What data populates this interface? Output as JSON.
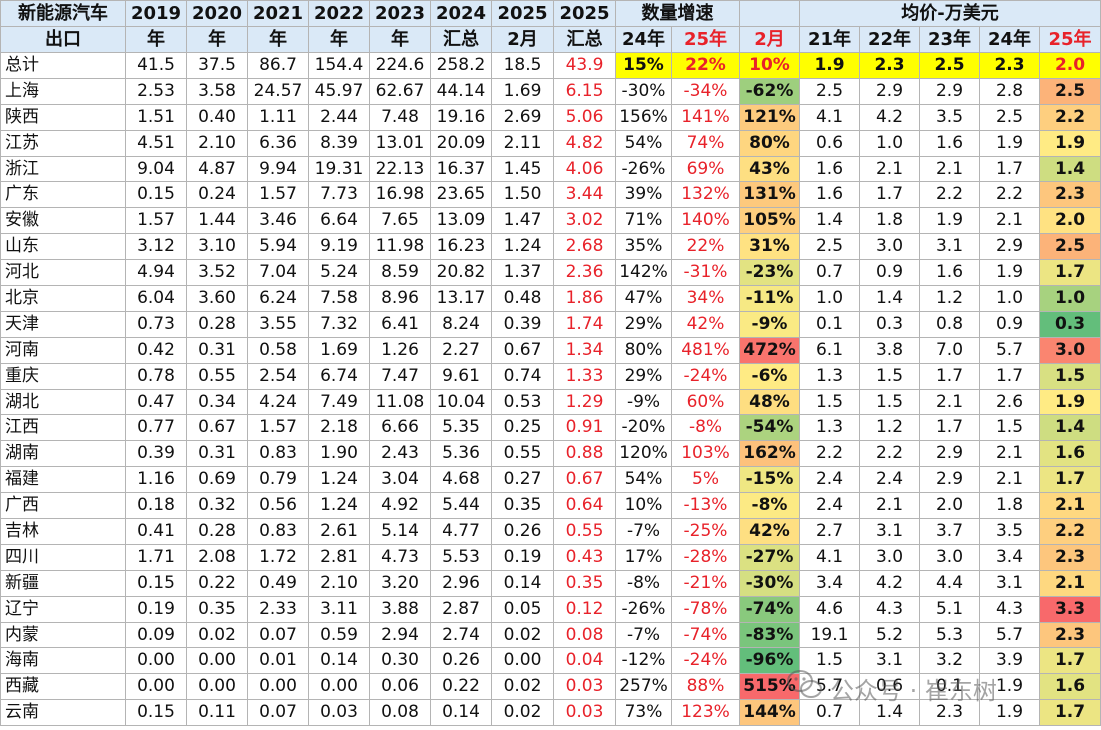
{
  "header": {
    "row1": [
      "新能源汽车",
      "2019",
      "2020",
      "2021",
      "2022",
      "2023",
      "2024",
      "2025",
      "2025",
      "数量增速",
      "",
      "均价-万美元"
    ],
    "row2": [
      "出口",
      "年",
      "年",
      "年",
      "年",
      "年",
      "汇总",
      "2月",
      "汇总",
      "24年",
      "25年",
      "2月",
      "21年",
      "22年",
      "23年",
      "24年",
      "25年"
    ]
  },
  "rows": [
    {
      "cells": [
        "总计",
        "41.5",
        "37.5",
        "86.7",
        "154.4",
        "224.6",
        "258.2",
        "18.5",
        "43.9",
        "15%",
        "22%",
        "10%",
        "1.9",
        "2.3",
        "2.5",
        "2.3",
        "2.0"
      ]
    },
    {
      "cells": [
        "上海",
        "2.53",
        "3.58",
        "24.57",
        "45.97",
        "62.67",
        "44.14",
        "1.69",
        "6.15",
        "-30%",
        "-34%",
        "-62%",
        "2.5",
        "2.9",
        "2.9",
        "2.8",
        "2.5"
      ]
    },
    {
      "cells": [
        "陕西",
        "1.51",
        "0.40",
        "1.11",
        "2.44",
        "7.48",
        "19.16",
        "2.69",
        "5.06",
        "156%",
        "141%",
        "121%",
        "4.1",
        "4.2",
        "3.5",
        "2.5",
        "2.2"
      ]
    },
    {
      "cells": [
        "江苏",
        "4.51",
        "2.10",
        "6.36",
        "8.39",
        "13.01",
        "20.09",
        "2.11",
        "4.82",
        "54%",
        "74%",
        "80%",
        "0.6",
        "1.0",
        "1.6",
        "1.9",
        "1.9"
      ]
    },
    {
      "cells": [
        "浙江",
        "9.04",
        "4.87",
        "9.94",
        "19.31",
        "22.13",
        "16.37",
        "1.45",
        "4.06",
        "-26%",
        "69%",
        "43%",
        "1.6",
        "2.1",
        "2.1",
        "1.7",
        "1.4"
      ]
    },
    {
      "cells": [
        "广东",
        "0.15",
        "0.24",
        "1.57",
        "7.73",
        "16.98",
        "23.65",
        "1.50",
        "3.44",
        "39%",
        "132%",
        "131%",
        "1.6",
        "1.7",
        "2.2",
        "2.2",
        "2.3"
      ]
    },
    {
      "cells": [
        "安徽",
        "1.57",
        "1.44",
        "3.46",
        "6.64",
        "7.65",
        "13.09",
        "1.47",
        "3.02",
        "71%",
        "140%",
        "105%",
        "1.4",
        "1.8",
        "1.9",
        "2.1",
        "2.0"
      ]
    },
    {
      "cells": [
        "山东",
        "3.12",
        "3.10",
        "5.94",
        "9.19",
        "11.98",
        "16.23",
        "1.24",
        "2.68",
        "35%",
        "22%",
        "31%",
        "2.5",
        "3.0",
        "3.1",
        "2.9",
        "2.5"
      ]
    },
    {
      "cells": [
        "河北",
        "4.94",
        "3.52",
        "7.04",
        "5.24",
        "8.59",
        "20.82",
        "1.37",
        "2.36",
        "142%",
        "-31%",
        "-23%",
        "0.7",
        "0.9",
        "1.6",
        "1.9",
        "1.7"
      ]
    },
    {
      "cells": [
        "北京",
        "6.04",
        "3.60",
        "6.24",
        "7.58",
        "8.96",
        "13.17",
        "0.48",
        "1.86",
        "47%",
        "34%",
        "-11%",
        "1.0",
        "1.4",
        "1.2",
        "1.0",
        "1.0"
      ]
    },
    {
      "cells": [
        "天津",
        "0.73",
        "0.28",
        "3.55",
        "7.32",
        "6.41",
        "8.24",
        "0.39",
        "1.74",
        "29%",
        "42%",
        "-9%",
        "0.1",
        "0.3",
        "0.8",
        "0.9",
        "0.3"
      ]
    },
    {
      "cells": [
        "河南",
        "0.42",
        "0.31",
        "0.58",
        "1.69",
        "1.26",
        "2.27",
        "0.67",
        "1.34",
        "80%",
        "481%",
        "472%",
        "6.1",
        "3.8",
        "7.0",
        "5.7",
        "3.0"
      ]
    },
    {
      "cells": [
        "重庆",
        "0.78",
        "0.55",
        "2.54",
        "6.74",
        "7.47",
        "9.61",
        "0.74",
        "1.33",
        "29%",
        "-24%",
        "-6%",
        "1.3",
        "1.5",
        "1.7",
        "1.7",
        "1.5"
      ]
    },
    {
      "cells": [
        "湖北",
        "0.47",
        "0.34",
        "4.24",
        "7.49",
        "11.08",
        "10.04",
        "0.53",
        "1.29",
        "-9%",
        "60%",
        "48%",
        "1.5",
        "1.5",
        "2.1",
        "2.6",
        "1.9"
      ]
    },
    {
      "cells": [
        "江西",
        "0.77",
        "0.67",
        "1.57",
        "2.18",
        "6.66",
        "5.35",
        "0.25",
        "0.91",
        "-20%",
        "-8%",
        "-54%",
        "1.3",
        "1.2",
        "1.7",
        "1.5",
        "1.4"
      ]
    },
    {
      "cells": [
        "湖南",
        "0.39",
        "0.31",
        "0.83",
        "1.90",
        "2.43",
        "5.36",
        "0.55",
        "0.88",
        "120%",
        "103%",
        "162%",
        "2.2",
        "2.2",
        "2.9",
        "2.1",
        "1.6"
      ]
    },
    {
      "cells": [
        "福建",
        "1.16",
        "0.69",
        "0.79",
        "1.24",
        "3.04",
        "4.68",
        "0.27",
        "0.67",
        "54%",
        "5%",
        "-15%",
        "2.4",
        "2.4",
        "2.9",
        "2.1",
        "1.7"
      ]
    },
    {
      "cells": [
        "广西",
        "0.18",
        "0.32",
        "0.56",
        "1.24",
        "4.92",
        "5.44",
        "0.35",
        "0.64",
        "10%",
        "-13%",
        "-8%",
        "2.4",
        "2.1",
        "2.0",
        "1.8",
        "2.1"
      ]
    },
    {
      "cells": [
        "吉林",
        "0.41",
        "0.28",
        "0.83",
        "2.61",
        "5.14",
        "4.77",
        "0.26",
        "0.55",
        "-7%",
        "-25%",
        "42%",
        "2.7",
        "3.1",
        "3.7",
        "3.5",
        "2.2"
      ]
    },
    {
      "cells": [
        "四川",
        "1.71",
        "2.08",
        "1.72",
        "2.81",
        "4.73",
        "5.53",
        "0.19",
        "0.43",
        "17%",
        "-28%",
        "-27%",
        "4.1",
        "3.0",
        "3.0",
        "3.4",
        "2.3"
      ]
    },
    {
      "cells": [
        "新疆",
        "0.15",
        "0.22",
        "0.49",
        "2.10",
        "3.20",
        "2.96",
        "0.14",
        "0.35",
        "-8%",
        "-21%",
        "-30%",
        "3.4",
        "4.2",
        "4.4",
        "3.1",
        "2.1"
      ]
    },
    {
      "cells": [
        "辽宁",
        "0.19",
        "0.35",
        "2.33",
        "3.11",
        "3.88",
        "2.87",
        "0.05",
        "0.12",
        "-26%",
        "-78%",
        "-74%",
        "4.6",
        "4.3",
        "5.1",
        "4.3",
        "3.3"
      ]
    },
    {
      "cells": [
        "内蒙",
        "0.09",
        "0.02",
        "0.07",
        "0.59",
        "2.94",
        "2.74",
        "0.02",
        "0.08",
        "-7%",
        "-74%",
        "-83%",
        "19.1",
        "5.2",
        "5.3",
        "5.7",
        "2.3"
      ]
    },
    {
      "cells": [
        "海南",
        "0.00",
        "0.00",
        "0.01",
        "0.14",
        "0.30",
        "0.26",
        "0.00",
        "0.04",
        "-12%",
        "-24%",
        "-96%",
        "1.5",
        "3.1",
        "3.2",
        "3.9",
        "1.7"
      ]
    },
    {
      "cells": [
        "西藏",
        "0.00",
        "0.00",
        "0.00",
        "0.00",
        "0.06",
        "0.22",
        "0.02",
        "0.03",
        "257%",
        "88%",
        "515%",
        "5.7",
        "0.6",
        "0.1",
        "1.9",
        "1.6"
      ]
    },
    {
      "cells": [
        "云南",
        "0.15",
        "0.11",
        "0.07",
        "0.03",
        "0.08",
        "0.14",
        "0.02",
        "0.03",
        "73%",
        "123%",
        "144%",
        "0.7",
        "1.4",
        "2.3",
        "1.9",
        "1.7"
      ]
    }
  ],
  "watermark": {
    "text": "公众号 · 崔东树",
    "icon": "wechat-icon"
  },
  "colors": {
    "header_bg": "#dae9f7",
    "red_text": "#e8222a",
    "total_highlight": "#ffff00",
    "scale_low": "#63be7b",
    "scale_mid": "#ffeb84",
    "scale_high": "#f8696b"
  }
}
